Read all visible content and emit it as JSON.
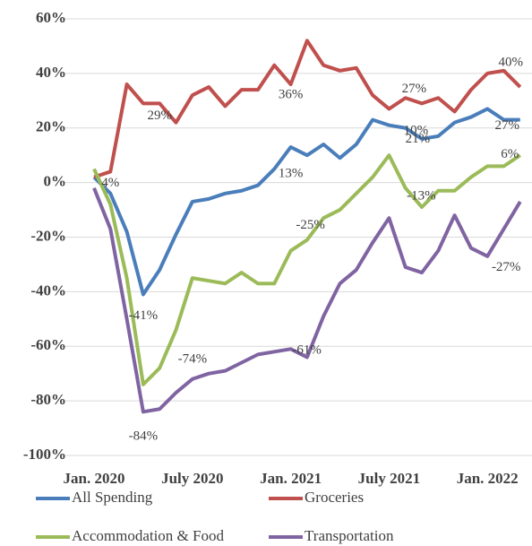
{
  "chart_data": {
    "type": "line",
    "categories": [
      "Jan. 2020",
      null,
      null,
      null,
      null,
      null,
      "July 2020",
      null,
      null,
      null,
      null,
      null,
      "Jan. 2021",
      null,
      null,
      null,
      null,
      null,
      "July 2021",
      null,
      null,
      null,
      null,
      null,
      "Jan. 2022",
      null,
      null
    ],
    "ylim": [
      -100,
      60
    ],
    "yticks": [
      {
        "value": -100,
        "label": "-100%"
      },
      {
        "value": -80,
        "label": "-80%"
      },
      {
        "value": -60,
        "label": "-60%"
      },
      {
        "value": -40,
        "label": "-40%"
      },
      {
        "value": -20,
        "label": "-20%"
      },
      {
        "value": 0,
        "label": "0%"
      },
      {
        "value": 20,
        "label": "20%"
      },
      {
        "value": 40,
        "label": "40%"
      },
      {
        "value": 60,
        "label": "60%"
      }
    ],
    "grid": true,
    "legend": "bottom",
    "series": [
      {
        "name": "All Spending",
        "color": "#4a7ebb",
        "values": [
          2,
          -4,
          -18,
          -41,
          -32,
          -19,
          -7,
          -6,
          -4,
          -3,
          -1,
          5,
          13,
          10,
          14,
          9,
          14,
          23,
          21,
          20,
          16,
          17,
          22,
          24,
          27,
          23,
          23
        ],
        "value_labels": [
          null,
          null,
          null,
          "-41%",
          null,
          null,
          null,
          null,
          null,
          null,
          null,
          null,
          "13%",
          null,
          null,
          null,
          null,
          null,
          "21%",
          null,
          null,
          null,
          null,
          null,
          "27%",
          null,
          null
        ]
      },
      {
        "name": "Groceries",
        "color": "#c0504d",
        "values": [
          2,
          4,
          36,
          29,
          29,
          22,
          32,
          35,
          28,
          34,
          34,
          43,
          36,
          52,
          43,
          41,
          42,
          32,
          27,
          31,
          29,
          31,
          26,
          34,
          40,
          41,
          35
        ],
        "value_labels": [
          null,
          "4%",
          null,
          null,
          "29%",
          null,
          null,
          null,
          null,
          null,
          null,
          null,
          "36%",
          null,
          null,
          null,
          null,
          null,
          "27%",
          null,
          null,
          null,
          null,
          null,
          "40%",
          null,
          null
        ]
      },
      {
        "name": "Accommodation & Food",
        "color": "#9bbb59",
        "values": [
          5,
          -8,
          -35,
          -74,
          -68,
          -54,
          -35,
          -36,
          -37,
          -33,
          -37,
          -37,
          -25,
          -21,
          -13,
          -10,
          -4,
          2,
          10,
          -2,
          -9,
          -3,
          -3,
          2,
          6,
          6,
          10
        ],
        "value_labels": [
          null,
          null,
          null,
          "-74%",
          null,
          null,
          null,
          null,
          null,
          null,
          null,
          null,
          "-25%",
          null,
          null,
          null,
          null,
          null,
          "10%",
          null,
          null,
          null,
          null,
          null,
          "6%",
          null,
          null
        ]
      },
      {
        "name": "Transportation",
        "color": "#8064a2",
        "values": [
          -2,
          -17,
          -50,
          -84,
          -83,
          -77,
          -72,
          -70,
          -69,
          -66,
          -63,
          -62,
          -61,
          -64,
          -49,
          -37,
          -32,
          -22,
          -13,
          -31,
          -33,
          -25,
          -12,
          -24,
          -27,
          -17,
          -7
        ],
        "value_labels": [
          null,
          null,
          null,
          "-84%",
          null,
          null,
          null,
          null,
          null,
          null,
          null,
          null,
          "-61%",
          null,
          null,
          null,
          null,
          null,
          "-13%",
          null,
          null,
          null,
          null,
          null,
          "-27%",
          null,
          null
        ]
      }
    ]
  }
}
